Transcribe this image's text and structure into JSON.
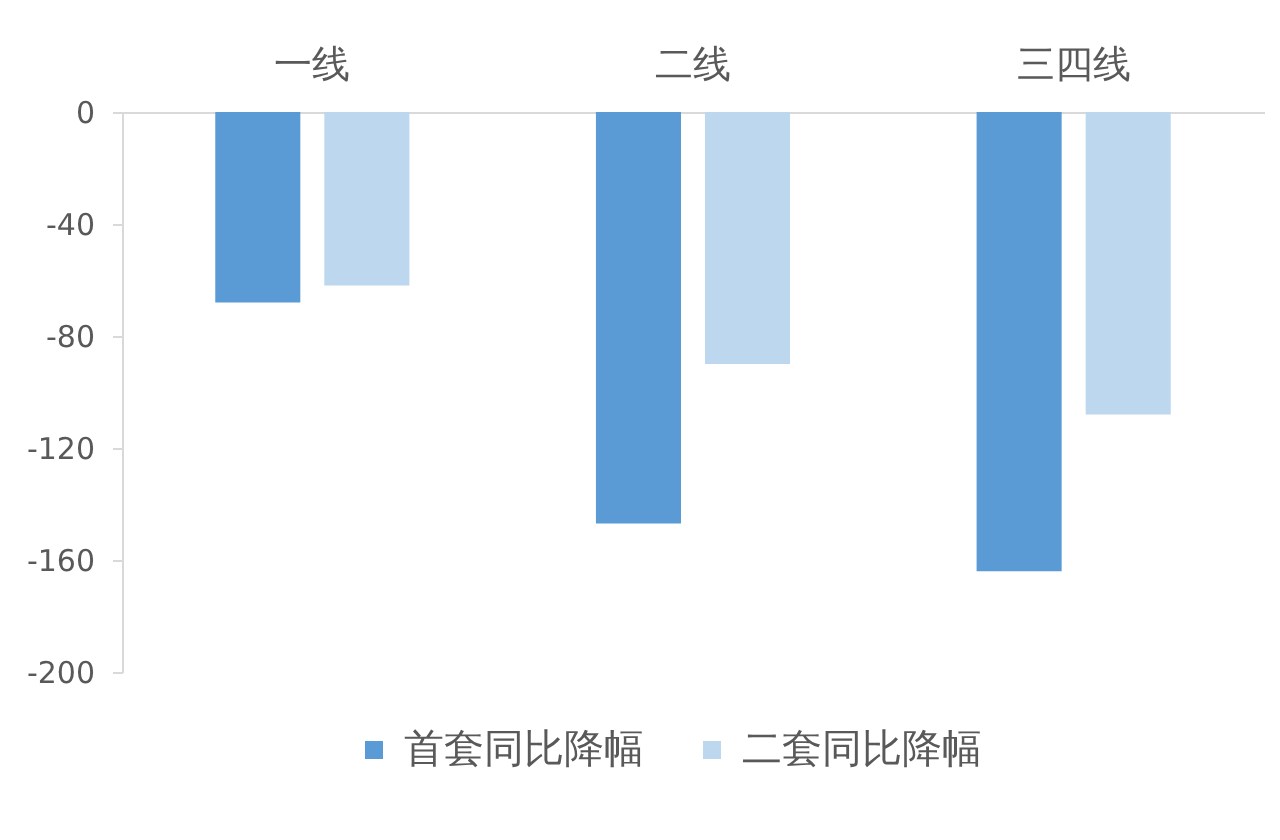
{
  "chart_data": {
    "type": "bar",
    "categories": [
      "一线",
      "二线",
      "三四线"
    ],
    "series": [
      {
        "name": "首套同比降幅",
        "color": "#5b9bd5",
        "values": [
          -68,
          -147,
          -164
        ]
      },
      {
        "name": "二套同比降幅",
        "color": "#bdd7ee",
        "values": [
          -62,
          -90,
          -108
        ]
      }
    ],
    "ylim": [
      -200,
      0
    ],
    "yticks": [
      0,
      -40,
      -80,
      -120,
      -160,
      -200
    ],
    "grid": false,
    "legend": "bottom"
  }
}
